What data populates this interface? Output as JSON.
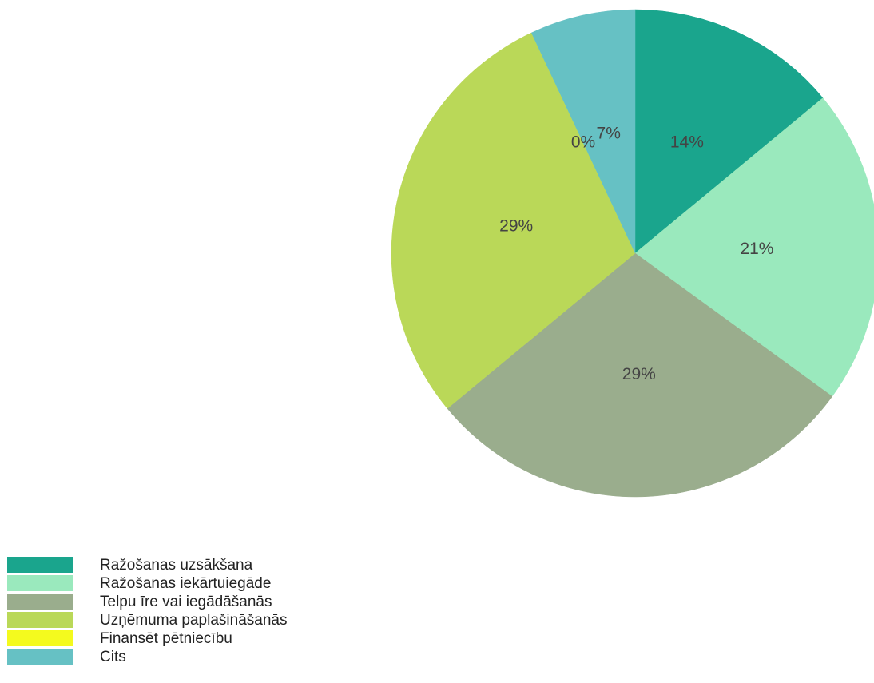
{
  "chart_data": {
    "type": "pie",
    "categories": [
      "Ražošanas uzsākšana",
      "Ražošanas iekārtuiegāde",
      "Telpu īre vai iegādāšanās",
      "Uzņēmuma paplašināšanās",
      "Finansēt pētniecību",
      "Cits"
    ],
    "values": [
      14,
      21,
      29,
      29,
      0,
      7
    ],
    "value_labels": [
      "14%",
      "21%",
      "29%",
      "29%",
      "0%",
      "7%"
    ],
    "colors": [
      "#1aa58d",
      "#9ae9bd",
      "#9aad8d",
      "#bad858",
      "#f4fa1e",
      "#66c1c4"
    ]
  }
}
